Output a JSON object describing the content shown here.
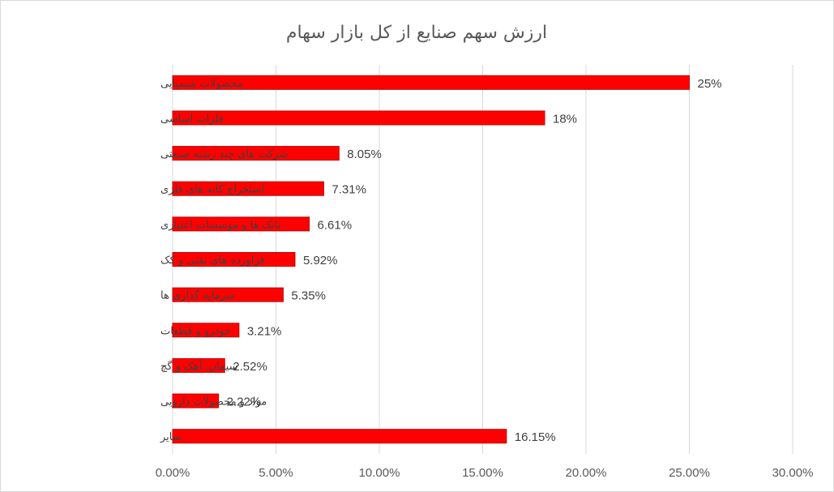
{
  "chart_data": {
    "type": "bar",
    "orientation": "horizontal",
    "title": "ارزش سهم صنایع از کل بازار سهام",
    "xlabel": "",
    "ylabel": "",
    "categories": [
      "محصولات شیمیایی",
      "فلزات اساسی",
      "شرکت های چند رشته صنعتی",
      "استخراج کانه های فلزی",
      "بانک ها و موسسات اعتباری",
      "فراورده های نفتی و کک",
      "سرمایه گذاری ها",
      "خودرو و قطعات",
      "سیمان، آهک و گچ",
      "مواد و محصولات دارویی",
      "سایر"
    ],
    "values": [
      25,
      18,
      8.05,
      7.31,
      6.61,
      5.92,
      5.35,
      3.21,
      2.52,
      2.22,
      16.15
    ],
    "value_labels": [
      "25%",
      "18%",
      "8.05%",
      "7.31%",
      "6.61%",
      "5.92%",
      "5.35%",
      "3.21%",
      "2.52%",
      "2.22%",
      "16.15%"
    ],
    "x_ticks": [
      "0.00%",
      "5.00%",
      "10.00%",
      "15.00%",
      "20.00%",
      "25.00%",
      "30.00%"
    ],
    "xlim": [
      0,
      30
    ],
    "grid": true,
    "legend": "none",
    "bar_color": "#ff0000",
    "bar_border_color": "#c00000"
  }
}
